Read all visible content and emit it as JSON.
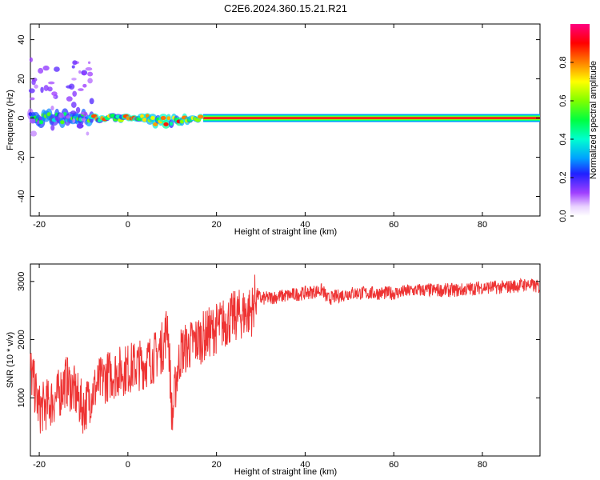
{
  "title": "C2E6.2024.360.15.21.R21",
  "chart_data": [
    {
      "type": "heatmap",
      "xlabel": "Height of straight line (km)",
      "ylabel": "Frequency (Hz)",
      "xlim": [
        -22,
        93
      ],
      "ylim": [
        -50,
        48
      ],
      "xticks": [
        -20,
        0,
        20,
        40,
        60,
        80
      ],
      "yticks": [
        -40,
        -20,
        0,
        20,
        40
      ],
      "colorbar": {
        "label": "Normalized spectral amplitude",
        "range": [
          0,
          1
        ],
        "ticks": [
          "0.0",
          "0.2",
          "0.4",
          "0.6",
          "0.8"
        ]
      },
      "features": [
        {
          "name": "stable carrier line at 0 Hz",
          "x_range": [
            17,
            93
          ],
          "freq_hz": 0,
          "amplitude": 0.95
        },
        {
          "name": "noisy broadened signal",
          "x_range": [
            -22,
            17
          ],
          "freq_hz": 0,
          "amplitude": 0.6
        },
        {
          "name": "scattered low-amplitude blobs",
          "x_range": [
            -22,
            -8
          ],
          "freq_range_hz": [
            -8,
            30
          ],
          "amplitude": 0.2
        }
      ]
    },
    {
      "type": "line",
      "xlabel": "Height of straight line (km)",
      "ylabel": "SNR (10 * v/v)",
      "xlim": [
        -22,
        93
      ],
      "ylim": [
        0,
        3300
      ],
      "xticks": [
        -20,
        0,
        20,
        40,
        60,
        80
      ],
      "yticks": [
        1000,
        2000,
        3000
      ],
      "color": "#ee3333",
      "series": [
        {
          "x": [
            -22,
            -20,
            -18,
            -16,
            -14,
            -12,
            -10,
            -8,
            -6,
            -4,
            -2,
            0,
            2,
            4,
            6,
            8,
            9,
            10,
            11,
            12,
            14,
            16,
            18,
            20,
            22,
            24,
            26,
            28,
            29,
            30,
            35,
            40,
            44,
            45,
            50,
            55,
            60,
            65,
            70,
            75,
            80,
            85,
            90,
            93
          ],
          "y": [
            1500,
            800,
            900,
            1000,
            1300,
            1100,
            800,
            1100,
            1300,
            1400,
            1450,
            1500,
            1550,
            1600,
            1700,
            1900,
            2300,
            600,
            1400,
            1800,
            1900,
            2000,
            2100,
            2200,
            2300,
            2400,
            2450,
            2500,
            2800,
            2700,
            2750,
            2800,
            2850,
            2700,
            2800,
            2800,
            2800,
            2850,
            2850,
            2850,
            2900,
            2900,
            2950,
            2900
          ]
        }
      ]
    }
  ]
}
